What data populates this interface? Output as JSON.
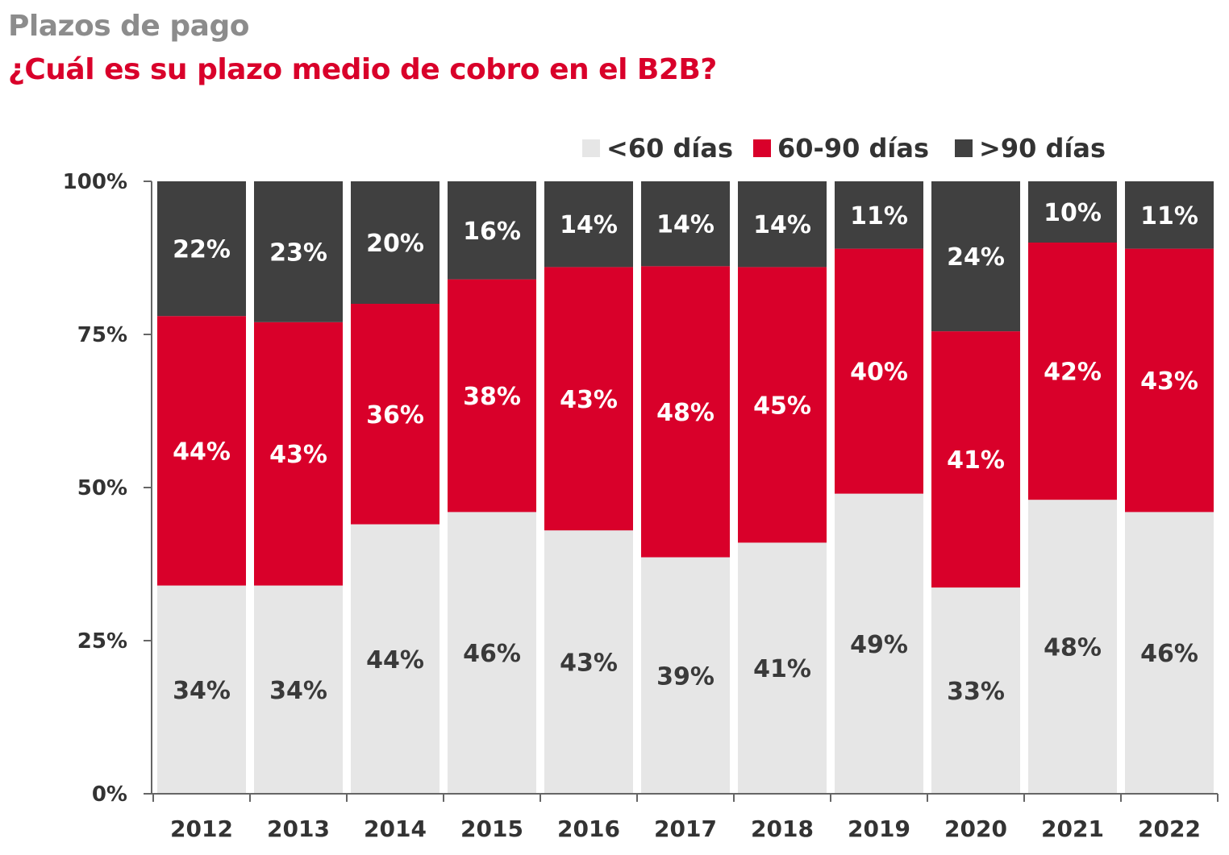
{
  "header": {
    "title": "Plazos de pago",
    "subtitle": "¿Cuál es su plazo medio de cobro en el B2B?"
  },
  "colors": {
    "lt60": "#e6e6e6",
    "d60_90": "#d9002a",
    "gt90": "#404040",
    "title": "#8c8c8c",
    "subtitle": "#d9002a"
  },
  "chart_data": {
    "type": "bar",
    "stacked": true,
    "categories": [
      "2012",
      "2013",
      "2014",
      "2015",
      "2016",
      "2017",
      "2018",
      "2019",
      "2020",
      "2021",
      "2022"
    ],
    "series": [
      {
        "name": "<60 días",
        "color": "#e6e6e6",
        "values": [
          34,
          34,
          44,
          46,
          43,
          39,
          41,
          49,
          33,
          48,
          46
        ],
        "labels": [
          "34%",
          "34%",
          "44%",
          "46%",
          "43%",
          "39%",
          "41%",
          "49%",
          "33%",
          "48%",
          "46%"
        ]
      },
      {
        "name": "60-90 días",
        "color": "#d9002a",
        "values": [
          44,
          43,
          36,
          38,
          43,
          48,
          45,
          40,
          41,
          42,
          43
        ],
        "labels": [
          "44%",
          "43%",
          "36%",
          "38%",
          "43%",
          "48%",
          "45%",
          "40%",
          "41%",
          "42%",
          "43%"
        ]
      },
      {
        "name": ">90 días",
        "color": "#404040",
        "values": [
          22,
          23,
          20,
          16,
          14,
          14,
          14,
          11,
          24,
          10,
          11
        ],
        "labels": [
          "22%",
          "23%",
          "20%",
          "16%",
          "14%",
          "14%",
          "14%",
          "11%",
          "24%",
          "10%",
          "11%"
        ]
      }
    ],
    "yticks": [
      "0%",
      "25%",
      "50%",
      "75%",
      "100%"
    ],
    "ylim": [
      0,
      100
    ],
    "legend": "top-right",
    "grid": false
  }
}
